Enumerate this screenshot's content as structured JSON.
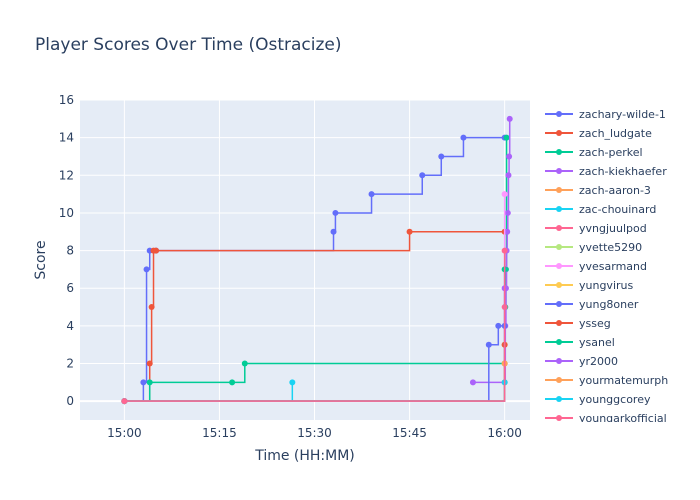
{
  "chart_data": {
    "type": "line",
    "line_shape": "step-after",
    "title": "Player Scores Over Time (Ostracize)",
    "xlabel": "Time (HH:MM)",
    "ylabel": "Score",
    "xlim": [
      "14:53",
      "16:04"
    ],
    "ylim": [
      -1,
      16
    ],
    "x_ticks": [
      "15:00",
      "15:15",
      "15:30",
      "15:45",
      "16:00"
    ],
    "y_ticks": [
      0,
      2,
      4,
      6,
      8,
      10,
      12,
      14,
      16
    ],
    "grid": true,
    "legend_position": "right",
    "series": [
      {
        "name": "zachary-wilde-1",
        "color": "#636efa",
        "x": [
          "15:00",
          "15:03",
          "15:03.5",
          "15:04",
          "15:05",
          "15:33",
          "15:33.3",
          "15:39",
          "15:47",
          "15:50",
          "15:53.5",
          "16:00"
        ],
        "y": [
          0,
          1,
          7,
          8,
          8,
          9,
          10,
          11,
          12,
          13,
          14,
          14
        ]
      },
      {
        "name": "zach_ludgate",
        "color": "#ef553b",
        "x": [
          "15:00",
          "15:04",
          "15:04.3",
          "15:04.6",
          "15:05",
          "15:45",
          "16:00"
        ],
        "y": [
          0,
          2,
          5,
          8,
          8,
          9,
          9
        ]
      },
      {
        "name": "zach-perkel",
        "color": "#00cc96",
        "x": [
          "15:00",
          "15:04",
          "15:17",
          "15:19",
          "16:00",
          "16:00.1",
          "16:00.2",
          "16:00.3"
        ],
        "y": [
          0,
          1,
          1,
          2,
          2,
          5,
          7,
          14
        ]
      },
      {
        "name": "zach-kiekhaefer",
        "color": "#ab63fa",
        "x": [
          "15:55",
          "16:00",
          "16:00.1",
          "16:00.2",
          "16:00.3",
          "16:00.4",
          "16:00.5",
          "16:00.6",
          "16:00.7",
          "16:00.8"
        ],
        "y": [
          1,
          1,
          4,
          6,
          8,
          9,
          10,
          12,
          13,
          15
        ]
      },
      {
        "name": "zach-aaron-3",
        "color": "#ffa15a",
        "x": [
          "15:00",
          "16:00"
        ],
        "y": [
          0,
          1
        ]
      },
      {
        "name": "zac-chouinard",
        "color": "#19d3f3",
        "x": [
          "15:00",
          "15:26.5"
        ],
        "y": [
          0,
          1
        ]
      },
      {
        "name": "yvngjuulpod",
        "color": "#ff6692",
        "x": [
          "15:00",
          "16:00"
        ],
        "y": [
          0,
          5
        ]
      },
      {
        "name": "yvette5290",
        "color": "#b6e880",
        "x": [
          "15:00",
          "16:00"
        ],
        "y": [
          0,
          3
        ]
      },
      {
        "name": "yvesarmand",
        "color": "#ff97ff",
        "x": [
          "15:00",
          "16:00"
        ],
        "y": [
          0,
          11
        ]
      },
      {
        "name": "yungvirus",
        "color": "#fecb52",
        "x": [
          "15:00",
          "16:00"
        ],
        "y": [
          0,
          2
        ]
      },
      {
        "name": "yung8oner",
        "color": "#636efa",
        "x": [
          "15:00",
          "15:57.5",
          "15:59",
          "16:00"
        ],
        "y": [
          0,
          3,
          4,
          4
        ]
      },
      {
        "name": "ysseg",
        "color": "#ef553b",
        "x": [
          "15:00",
          "16:00"
        ],
        "y": [
          0,
          3
        ]
      },
      {
        "name": "ysanel",
        "color": "#00cc96",
        "x": [
          "15:00",
          "16:00"
        ],
        "y": [
          0,
          7
        ]
      },
      {
        "name": "yr2000",
        "color": "#ab63fa",
        "x": [
          "15:00",
          "16:00"
        ],
        "y": [
          0,
          6
        ]
      },
      {
        "name": "yourmatemurph",
        "color": "#ffa15a",
        "x": [
          "15:00",
          "16:00"
        ],
        "y": [
          0,
          2
        ]
      },
      {
        "name": "younggcorey",
        "color": "#19d3f3",
        "x": [
          "15:00",
          "16:00"
        ],
        "y": [
          0,
          1
        ]
      },
      {
        "name": "youngarkofficial",
        "color": "#ff6692",
        "x": [
          "15:00",
          "16:00"
        ],
        "y": [
          0,
          8
        ]
      }
    ]
  }
}
